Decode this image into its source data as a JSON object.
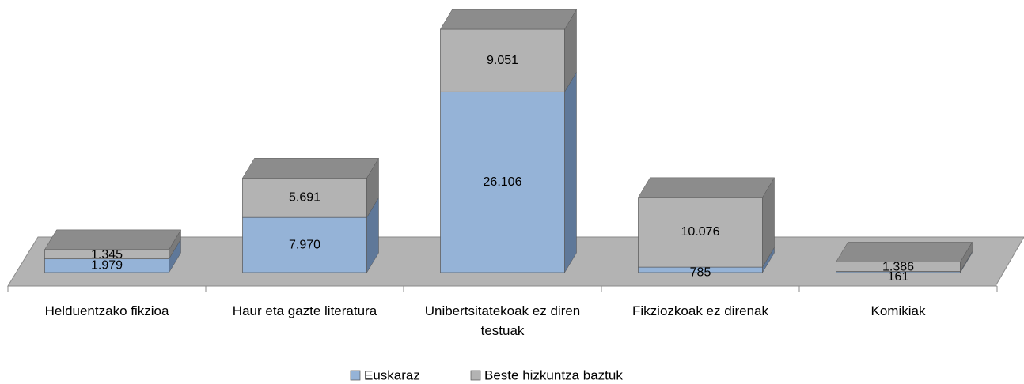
{
  "chart_data": {
    "type": "bar3d_stacked",
    "categories": [
      "Helduentzako fikzioa",
      "Haur eta gazte literatura",
      "Unibertsitatekoak ez diren testuak",
      "Fikziozkoak ez direnak",
      "Komikiak"
    ],
    "series": [
      {
        "name": "Euskaraz",
        "color": "#95b3d7",
        "side_color": "#5f7899",
        "values": [
          1979,
          7970,
          26106,
          785,
          161
        ],
        "value_labels": [
          "1.979",
          "7.970",
          "26.106",
          "785",
          "161"
        ]
      },
      {
        "name": "Beste hizkuntza baztuk",
        "color": "#b3b3b3",
        "side_color": "#7a7a7a",
        "values": [
          1345,
          5691,
          9051,
          10076,
          1386
        ],
        "value_labels": [
          "1.345",
          "5.691",
          "9.051",
          "10.076",
          "1.386"
        ]
      }
    ],
    "legend": "bottom"
  }
}
